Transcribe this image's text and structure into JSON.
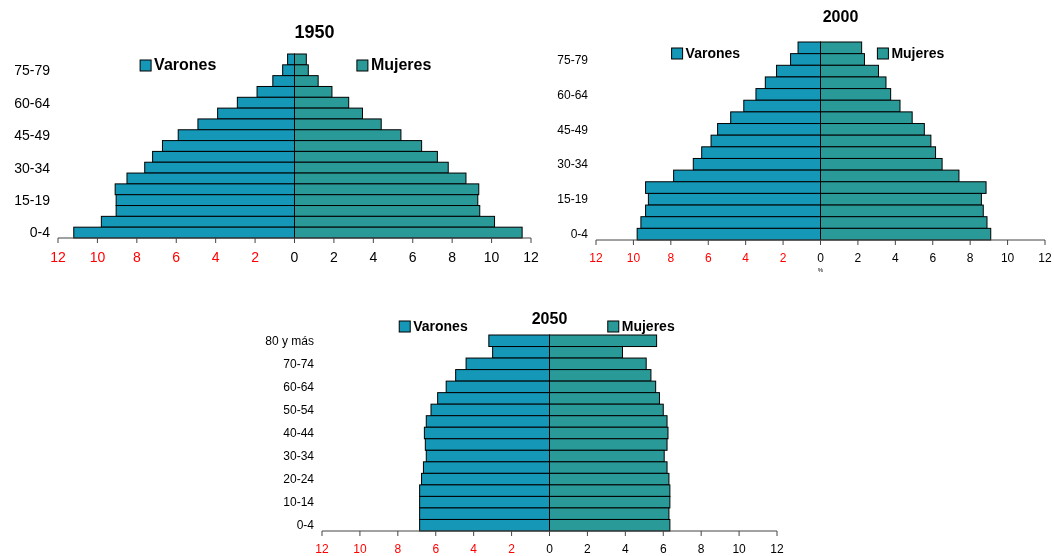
{
  "chart_data": [
    {
      "type": "bar",
      "title": "1950",
      "orientation": "horizontal",
      "stacked": true,
      "legend": "top",
      "categories": [
        null,
        "75-79",
        null,
        null,
        "60-64",
        null,
        null,
        "45-49",
        null,
        null,
        "30-34",
        null,
        null,
        "15-19",
        null,
        null,
        "0-4"
      ],
      "xlim": [
        -12,
        12
      ],
      "xticks": [
        {
          "value": -12,
          "label": "12"
        },
        {
          "value": -10,
          "label": "10"
        },
        {
          "value": -8,
          "label": "8"
        },
        {
          "value": -6,
          "label": "6"
        },
        {
          "value": -4,
          "label": "4"
        },
        {
          "value": -2,
          "label": "2"
        },
        0,
        2,
        4,
        6,
        8,
        10,
        12
      ],
      "series": [
        {
          "name": "Varones",
          "color": "#1597b8",
          "values": [
            -0.35,
            -0.6,
            -1.1,
            -1.9,
            -2.9,
            -3.9,
            -4.9,
            -5.9,
            -6.7,
            -7.2,
            -7.6,
            -8.5,
            -9.1,
            -9.05,
            -9.05,
            -9.8,
            -11.2
          ]
        },
        {
          "name": "Mujeres",
          "color": "#2a9a98",
          "values": [
            0.6,
            0.7,
            1.2,
            1.9,
            2.75,
            3.45,
            4.4,
            5.4,
            6.45,
            7.25,
            7.8,
            8.7,
            9.35,
            9.3,
            9.4,
            10.15,
            11.55
          ]
        }
      ]
    },
    {
      "type": "bar",
      "title": "2000",
      "xlabel": "%",
      "orientation": "horizontal",
      "stacked": true,
      "legend": "top",
      "categories": [
        null,
        "75-79",
        null,
        null,
        "60-64",
        null,
        null,
        "45-49",
        null,
        null,
        "30-34",
        null,
        null,
        "15-19",
        null,
        null,
        "0-4"
      ],
      "xlim": [
        -12,
        12
      ],
      "xticks": [
        {
          "value": -12,
          "label": "12"
        },
        {
          "value": -10,
          "label": "10"
        },
        {
          "value": -8,
          "label": "8"
        },
        {
          "value": -6,
          "label": "6"
        },
        {
          "value": -4,
          "label": "4"
        },
        {
          "value": -2,
          "label": "2"
        },
        0,
        2,
        4,
        6,
        8,
        10,
        12
      ],
      "series": [
        {
          "name": "Varones",
          "color": "#1597b8",
          "values": [
            -1.2,
            -1.6,
            -2.35,
            -2.95,
            -3.45,
            -4.1,
            -4.8,
            -5.5,
            -5.85,
            -6.35,
            -6.8,
            -7.85,
            -9.35,
            -9.2,
            -9.35,
            -9.6,
            -9.8
          ]
        },
        {
          "name": "Mujeres",
          "color": "#2a9a98",
          "values": [
            2.2,
            2.35,
            3.1,
            3.5,
            3.75,
            4.25,
            4.9,
            5.55,
            5.9,
            6.15,
            6.5,
            7.4,
            8.85,
            8.6,
            8.7,
            8.9,
            9.1
          ]
        }
      ]
    },
    {
      "type": "bar",
      "title": "2050",
      "orientation": "horizontal",
      "stacked": true,
      "legend": "top",
      "categories": [
        "80 y más",
        null,
        "70-74",
        null,
        "60-64",
        null,
        "50-54",
        null,
        "40-44",
        null,
        "30-34",
        null,
        "20-24",
        null,
        "10-14",
        null,
        "0-4"
      ],
      "xlim": [
        -12,
        12
      ],
      "xticks": [
        {
          "value": -12,
          "label": "12"
        },
        {
          "value": -10,
          "label": "10"
        },
        {
          "value": -8,
          "label": "8"
        },
        {
          "value": -6,
          "label": "6"
        },
        {
          "value": -4,
          "label": "4"
        },
        {
          "value": -2,
          "label": "2"
        },
        0,
        2,
        4,
        6,
        8,
        10,
        12
      ],
      "series": [
        {
          "name": "Varones",
          "color": "#1597b8",
          "values": [
            -3.2,
            -3.0,
            -4.4,
            -4.95,
            -5.45,
            -5.9,
            -6.25,
            -6.5,
            -6.6,
            -6.55,
            -6.5,
            -6.65,
            -6.75,
            -6.85,
            -6.85,
            -6.85,
            -6.85
          ]
        },
        {
          "name": "Mujeres",
          "color": "#2a9a98",
          "values": [
            5.65,
            3.85,
            5.1,
            5.35,
            5.6,
            5.8,
            6.0,
            6.2,
            6.25,
            6.2,
            6.05,
            6.2,
            6.3,
            6.35,
            6.35,
            6.3,
            6.35
          ]
        }
      ]
    }
  ]
}
